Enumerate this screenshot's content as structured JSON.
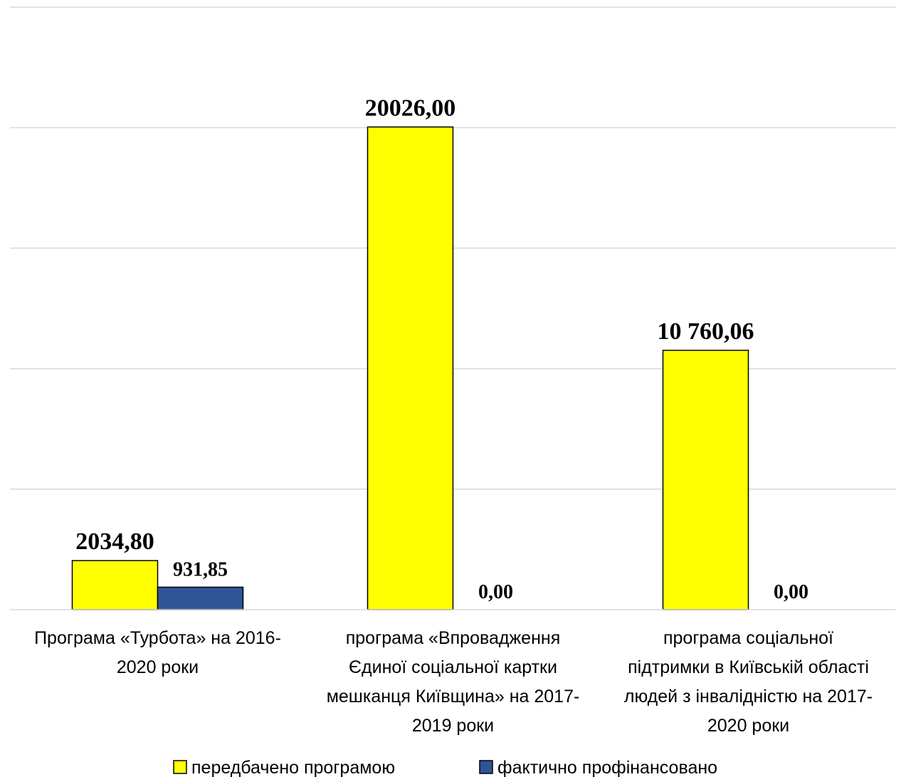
{
  "chart_data": {
    "type": "bar",
    "categories": [
      [
        "Програма «Турбота» на 2016-",
        "2020 роки"
      ],
      [
        "програма «Впровадження",
        "Єдиної соціальної картки",
        "мешканця Київщина» на 2017-",
        "2019 роки"
      ],
      [
        "програма соціальної",
        "підтримки в Київській області",
        "людей з інвалідністю на 2017-",
        "2020 роки"
      ]
    ],
    "series": [
      {
        "name": "передбачено програмою",
        "color": "#ffff00",
        "values": [
          2034.8,
          20026.0,
          10760.06
        ],
        "labels": [
          "2034,80",
          "20026,00",
          "10 760,06"
        ]
      },
      {
        "name": "фактично профінансовано",
        "color": "#2f5597",
        "values": [
          931.85,
          0.0,
          0.0
        ],
        "labels": [
          "931,85",
          "0,00",
          "0,00"
        ]
      }
    ],
    "title": "",
    "xlabel": "",
    "ylabel": "",
    "ylim": [
      0,
      25000
    ],
    "grid": true,
    "legend": "bottom"
  }
}
